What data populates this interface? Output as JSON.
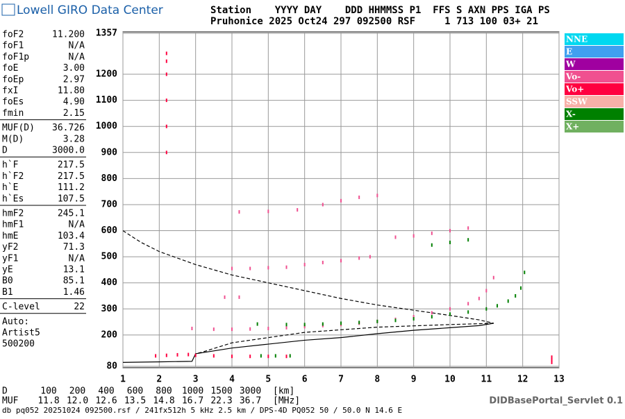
{
  "header": {
    "brand": "Lowell GIRO Data Center",
    "line1": "Station    YYYY DAY    DDD HHMMSS P1  FFS S AXN PPS IGA PS",
    "line2": "Pruhonice 2025 Oct24 297 092500 RSF     1 713 100 03+ 21"
  },
  "params": [
    [
      [
        "foF2",
        "11.200"
      ],
      [
        "foF1",
        "N/A"
      ],
      [
        "foF1p",
        "N/A"
      ],
      [
        "foE",
        "3.00"
      ],
      [
        "foEp",
        "2.97"
      ],
      [
        "fxI",
        "11.80"
      ],
      [
        "foEs",
        "4.90"
      ],
      [
        "fmin",
        "2.15"
      ]
    ],
    [
      [
        "MUF(D)",
        "36.726"
      ],
      [
        "M(D)",
        "3.28"
      ],
      [
        "D",
        "3000.0"
      ]
    ],
    [
      [
        "h`F",
        "217.5"
      ],
      [
        "h`F2",
        "217.5"
      ],
      [
        "h`E",
        "111.2"
      ],
      [
        "h`Es",
        "107.5"
      ]
    ],
    [
      [
        "hmF2",
        "245.1"
      ],
      [
        "hmF1",
        "N/A"
      ],
      [
        "hmE",
        "103.4"
      ],
      [
        "yF2",
        "71.3"
      ],
      [
        "yF1",
        "N/A"
      ],
      [
        "yE",
        "13.1"
      ],
      [
        "B0",
        "85.1"
      ],
      [
        "B1",
        "1.46"
      ]
    ],
    [
      [
        "C-level",
        "22"
      ]
    ]
  ],
  "auto": [
    "Auto:",
    "Artist5",
    "500200"
  ],
  "muf_table": {
    "d_label": "D",
    "d_values": [
      "100",
      "200",
      "400",
      "600",
      "800",
      "1000",
      "1500",
      "3000"
    ],
    "d_unit": "[km]",
    "muf_label": "MUF",
    "muf_values": [
      "11.8",
      "12.0",
      "12.6",
      "13.5",
      "14.8",
      "16.7",
      "22.3",
      "36.7"
    ],
    "muf_unit": "[MHz]"
  },
  "footer": {
    "left": "db pq052 20251024 092500.rsf / 241fx512h 5 kHz 2.5 km / DPS-4D PQ052 50 / 50.0 N 14.6 E",
    "right": "DIDBasePortal_Servlet 0.1"
  },
  "chart_data": {
    "type": "scatter",
    "xlim": [
      1,
      13
    ],
    "xticks": [
      1,
      2,
      3,
      4,
      5,
      6,
      7,
      8,
      9,
      10,
      11,
      12,
      13
    ],
    "ylim": [
      80,
      1357
    ],
    "yticks": [
      80,
      200,
      300,
      400,
      500,
      600,
      700,
      800,
      900,
      1000,
      1100,
      1200,
      1357
    ],
    "grid": true,
    "legend": "outside-right",
    "series": [
      {
        "name": "NNE",
        "color": "#00d8f0",
        "x": [],
        "values": []
      },
      {
        "name": "E",
        "color": "#40a0f0",
        "x": [],
        "values": []
      },
      {
        "name": "W",
        "color": "#a000a0",
        "x": [],
        "values": []
      },
      {
        "name": "Vo-",
        "color": "#f05090",
        "x": [
          2.9,
          3.5,
          4,
          4.5,
          5,
          5.5,
          6,
          6.5,
          7,
          7.5,
          8,
          8.5,
          9,
          9.5,
          10,
          10.5,
          10.8,
          11,
          11.2,
          4,
          4.5,
          5,
          5.5,
          6,
          6.5,
          7,
          7.5,
          7.8,
          4.2,
          5,
          5.8,
          6.5,
          7,
          7.5,
          8,
          3.8,
          4.2,
          8.5,
          9,
          9.5,
          10,
          10.5
        ],
        "values": [
          225,
          222,
          222,
          223,
          225,
          228,
          232,
          236,
          240,
          245,
          252,
          260,
          270,
          285,
          300,
          320,
          340,
          370,
          420,
          455,
          455,
          458,
          460,
          470,
          478,
          485,
          495,
          500,
          672,
          674,
          680,
          700,
          715,
          728,
          735,
          345,
          345,
          575,
          580,
          590,
          600,
          610
        ]
      },
      {
        "name": "Vo+",
        "color": "#ff0040",
        "x": [
          1.9,
          2.2,
          2.5,
          2.8,
          3,
          3.5,
          4,
          4.5,
          5,
          5.5,
          12.8,
          12.8,
          12.8,
          2.2,
          2.2,
          2.2,
          2.2,
          2.2,
          2.2
        ],
        "values": [
          120,
          122,
          124,
          125,
          122,
          120,
          118,
          118,
          118,
          118,
          95,
          105,
          115,
          900,
          1000,
          1100,
          1200,
          1250,
          1280
        ]
      },
      {
        "name": "SSW",
        "color": "#f8b0a8",
        "x": [],
        "values": []
      },
      {
        "name": "X-",
        "color": "#008000",
        "x": [
          4.7,
          5.5,
          6,
          6.5,
          7,
          7.5,
          8,
          8.5,
          9,
          9.5,
          10,
          10.5,
          11,
          11.3,
          11.6,
          11.8,
          11.95,
          12.05,
          4.8,
          5.2,
          5.6,
          9.5,
          10,
          10.5
        ],
        "values": [
          242,
          240,
          240,
          242,
          245,
          248,
          252,
          256,
          262,
          270,
          280,
          288,
          300,
          312,
          330,
          350,
          380,
          440,
          120,
          120,
          120,
          545,
          555,
          565
        ]
      },
      {
        "name": "X+",
        "color": "#70b060",
        "x": [],
        "values": []
      }
    ],
    "curves": [
      {
        "style": "dashed",
        "x": [
          1,
          1.5,
          2,
          2.5,
          3,
          4,
          5,
          6,
          7,
          8,
          9,
          10,
          10.8,
          11.2
        ],
        "values": [
          600,
          555,
          520,
          495,
          470,
          430,
          400,
          370,
          340,
          315,
          295,
          275,
          258,
          245
        ]
      },
      {
        "style": "solid",
        "x": [
          1,
          2,
          2.9,
          3,
          4,
          5,
          6,
          7,
          8,
          9,
          10,
          10.8,
          11.2
        ],
        "values": [
          95,
          97,
          99,
          128,
          150,
          165,
          180,
          190,
          205,
          218,
          228,
          236,
          245
        ]
      },
      {
        "style": "dashed",
        "x": [
          11.2,
          10,
          8,
          6,
          4,
          3.2,
          3
        ],
        "values": [
          245,
          240,
          230,
          210,
          170,
          135,
          128
        ]
      }
    ]
  }
}
